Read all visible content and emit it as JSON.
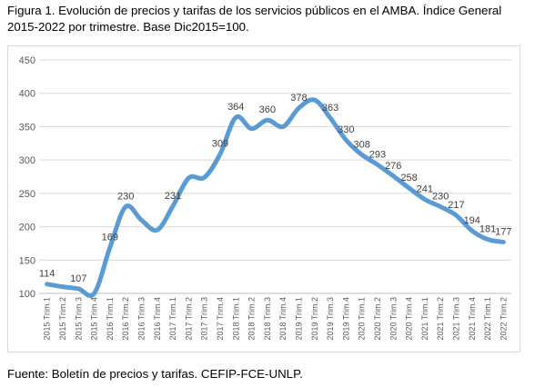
{
  "figure": {
    "title_line1": "Figura 1. Evolución de precios y tarifas de los servicios públicos en el AMBA. Índice General",
    "title_line2": "2015-2022 por trimestre. Base Dic2015=100.",
    "source": "Fuente: Boletín de precios y tarifas. CEFIP-FCE-UNLP."
  },
  "chart_data": {
    "type": "line",
    "title": "",
    "xlabel": "",
    "ylabel": "",
    "ylim": [
      100,
      450
    ],
    "yticks": [
      100,
      150,
      200,
      250,
      300,
      350,
      400,
      450
    ],
    "grid": true,
    "line_color": "#5b9bd5",
    "categories": [
      "2015 Trim.1",
      "2015 Trim.2",
      "2015 Trim.3",
      "2015 Trim.4",
      "2016 Trim.1",
      "2016 Trim.2",
      "2016 Trim.3",
      "2016 Trim.4",
      "2017 Trim.1",
      "2017 Trim.2",
      "2017 Trim.3",
      "2017 Trim.4",
      "2018 Trim.1",
      "2018 Trim.2",
      "2018 Trim.3",
      "2018 Trim.4",
      "2019 Trim.1",
      "2019 Trim.2",
      "2019 Trim.3",
      "2019 Trim.4",
      "2020 Trim.1",
      "2020 Trim.2",
      "2020 Trim.3",
      "2020 Trim.4",
      "2021 Trim.1",
      "2021 Trim.2",
      "2021 Trim.3",
      "2021 Trim.4",
      "2022 Trim.1",
      "2022 Trim.2"
    ],
    "values": [
      114,
      110,
      107,
      100,
      169,
      230,
      210,
      195,
      231,
      273,
      274,
      309,
      364,
      347,
      360,
      350,
      378,
      390,
      363,
      330,
      308,
      293,
      276,
      258,
      241,
      230,
      217,
      194,
      181,
      177
    ],
    "labels": [
      "114",
      null,
      "107",
      null,
      "169",
      "230",
      null,
      null,
      "231",
      null,
      null,
      "309",
      "364",
      null,
      "360",
      null,
      "378",
      null,
      "363",
      "330",
      "308",
      "293",
      "276",
      "258",
      "241",
      "230",
      "217",
      "194",
      "181",
      "177"
    ]
  }
}
